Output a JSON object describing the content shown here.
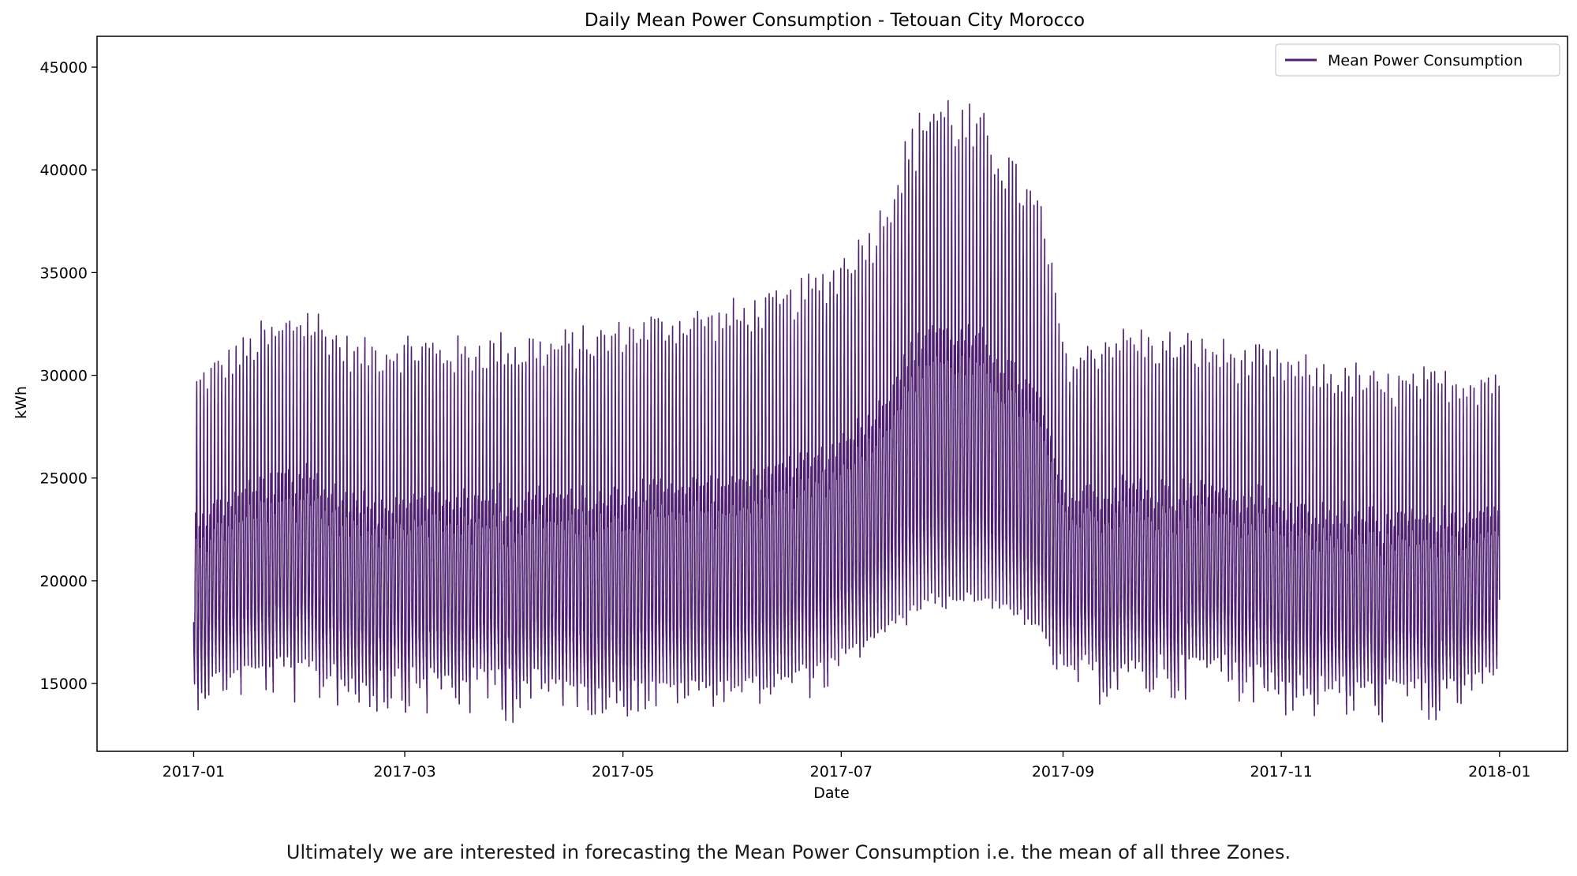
{
  "chart_data": {
    "type": "line",
    "title": "Daily Mean Power Consumption - Tetouan City Morocco",
    "xlabel": "Date",
    "ylabel": "kWh",
    "xlim": [
      "2016-12-05",
      "2018-01-20"
    ],
    "ylim": [
      11700,
      46500
    ],
    "x_ticks": [
      "2017-01",
      "2017-03",
      "2017-05",
      "2017-07",
      "2017-09",
      "2017-11",
      "2018-01"
    ],
    "y_ticks": [
      15000,
      20000,
      25000,
      30000,
      35000,
      40000,
      45000
    ],
    "grid": false,
    "legend_position": "top-right",
    "series": [
      {
        "name": "Mean Power Consumption",
        "color": "#4f1f71",
        "points": [
          [
            "2017-01-01",
            22000,
            15500,
            30000,
            13900
          ],
          [
            "2017-01-15",
            21800,
            16500,
            32000,
            14200
          ],
          [
            "2017-02-01",
            21700,
            16700,
            33500,
            14000
          ],
          [
            "2017-02-15",
            21300,
            16200,
            31500,
            13200
          ],
          [
            "2017-03-01",
            21500,
            16400,
            32000,
            13400
          ],
          [
            "2017-03-15",
            21400,
            16000,
            31700,
            13300
          ],
          [
            "2017-04-01",
            21400,
            16400,
            32000,
            13000
          ],
          [
            "2017-04-15",
            21500,
            15500,
            32000,
            13600
          ],
          [
            "2017-05-01",
            21800,
            15400,
            32800,
            13200
          ],
          [
            "2017-05-15",
            22200,
            15500,
            33300,
            13800
          ],
          [
            "2017-06-01",
            23000,
            15200,
            33500,
            14100
          ],
          [
            "2017-06-15",
            24000,
            15900,
            34200,
            14300
          ],
          [
            "2017-06-28",
            24500,
            16500,
            35500,
            14600
          ],
          [
            "2017-07-10",
            26000,
            17500,
            38000,
            16900
          ],
          [
            "2017-07-25",
            28000,
            19500,
            44300,
            18500
          ],
          [
            "2017-08-10",
            28000,
            19300,
            42500,
            19000
          ],
          [
            "2017-08-25",
            26000,
            17800,
            38500,
            17500
          ],
          [
            "2017-09-01",
            22000,
            16500,
            31000,
            14300
          ],
          [
            "2017-09-15",
            21500,
            16500,
            32500,
            14000
          ],
          [
            "2017-10-01",
            21500,
            16700,
            32000,
            14000
          ],
          [
            "2017-10-15",
            21300,
            17000,
            31700,
            14500
          ],
          [
            "2017-11-01",
            20800,
            16000,
            31000,
            13300
          ],
          [
            "2017-11-15",
            20300,
            15800,
            30600,
            13100
          ],
          [
            "2017-12-01",
            20000,
            15900,
            30000,
            12500
          ],
          [
            "2017-12-15",
            20000,
            15800,
            30200,
            12800
          ],
          [
            "2017-12-31",
            21000,
            16000,
            30500,
            15000
          ]
        ]
      }
    ]
  },
  "caption": "Ultimately we are interested in forecasting the Mean Power Consumption i.e. the mean of all three Zones."
}
